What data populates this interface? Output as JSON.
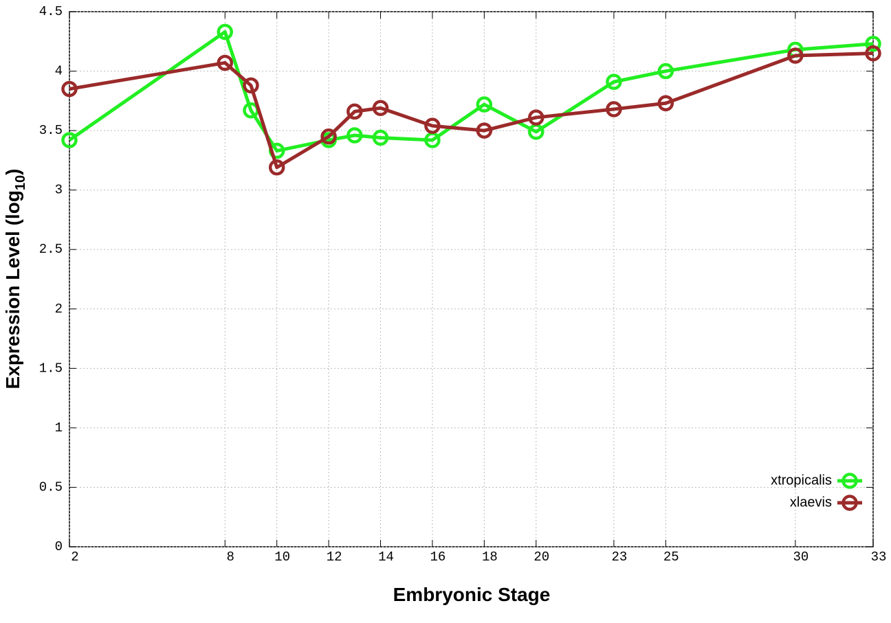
{
  "chart_data": {
    "type": "line",
    "xlabel": "Embryonic Stage",
    "ylabel": [
      "Expression Level (log",
      "10",
      ")"
    ],
    "x": [
      2,
      8,
      9,
      10,
      12,
      13,
      14,
      16,
      18,
      20,
      23,
      25,
      30,
      33
    ],
    "series": [
      {
        "name": "xtropicalis",
        "color": "#22ee22",
        "values": [
          3.42,
          4.33,
          3.67,
          3.33,
          3.42,
          3.46,
          3.44,
          3.42,
          3.72,
          3.49,
          3.91,
          4.0,
          4.18,
          4.23
        ]
      },
      {
        "name": "xlaevis",
        "color": "#9b2a2a",
        "values": [
          3.85,
          4.07,
          3.88,
          3.19,
          3.45,
          3.66,
          3.69,
          3.54,
          3.5,
          3.61,
          3.68,
          3.73,
          4.13,
          4.15
        ]
      }
    ],
    "xlim": [
      2,
      33
    ],
    "xticks": [
      2,
      8,
      10,
      12,
      14,
      16,
      18,
      20,
      23,
      25,
      30,
      33
    ],
    "ylim": [
      0,
      4.5
    ],
    "yticks": [
      0,
      0.5,
      1,
      1.5,
      2,
      2.5,
      3,
      3.5,
      4,
      4.5
    ],
    "grid": true,
    "legend": "lower right"
  }
}
